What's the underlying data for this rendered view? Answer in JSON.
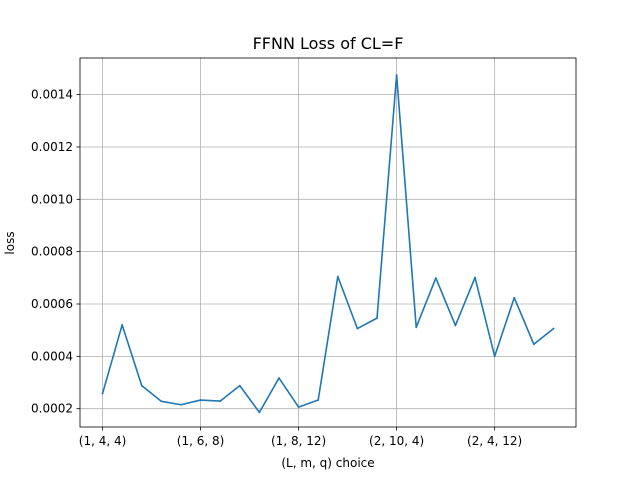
{
  "chart_data": {
    "type": "line",
    "title": "FFNN Loss of CL=F",
    "xlabel": "(L, m, q) choice",
    "ylabel": "loss",
    "grid": true,
    "legend": "none",
    "x_tick_labels": [
      {
        "index": 0,
        "label": "(1, 4, 4)"
      },
      {
        "index": 5,
        "label": "(1, 6, 8)"
      },
      {
        "index": 10,
        "label": "(1, 8, 12)"
      },
      {
        "index": 15,
        "label": "(2, 10, 4)"
      },
      {
        "index": 20,
        "label": "(2, 4, 12)"
      }
    ],
    "y_ticks": [
      0.0002,
      0.0004,
      0.0006,
      0.0008,
      0.001,
      0.0012,
      0.0014
    ],
    "y_tick_labels": [
      "0.0002",
      "0.0004",
      "0.0006",
      "0.0008",
      "0.0010",
      "0.0012",
      "0.0014"
    ],
    "ylim": [
      0.00013,
      0.00154
    ],
    "xlim": [
      -1.15,
      24.15
    ],
    "series": [
      {
        "color": "#1f77b4",
        "values": [
          0.000258,
          0.00052,
          0.000288,
          0.000228,
          0.000215,
          0.000233,
          0.000229,
          0.000288,
          0.000186,
          0.000317,
          0.000206,
          0.000233,
          0.000705,
          0.000506,
          0.000546,
          0.001475,
          0.000511,
          0.000699,
          0.000518,
          0.000701,
          0.0004,
          0.000624,
          0.000446,
          0.000506
        ]
      }
    ]
  }
}
